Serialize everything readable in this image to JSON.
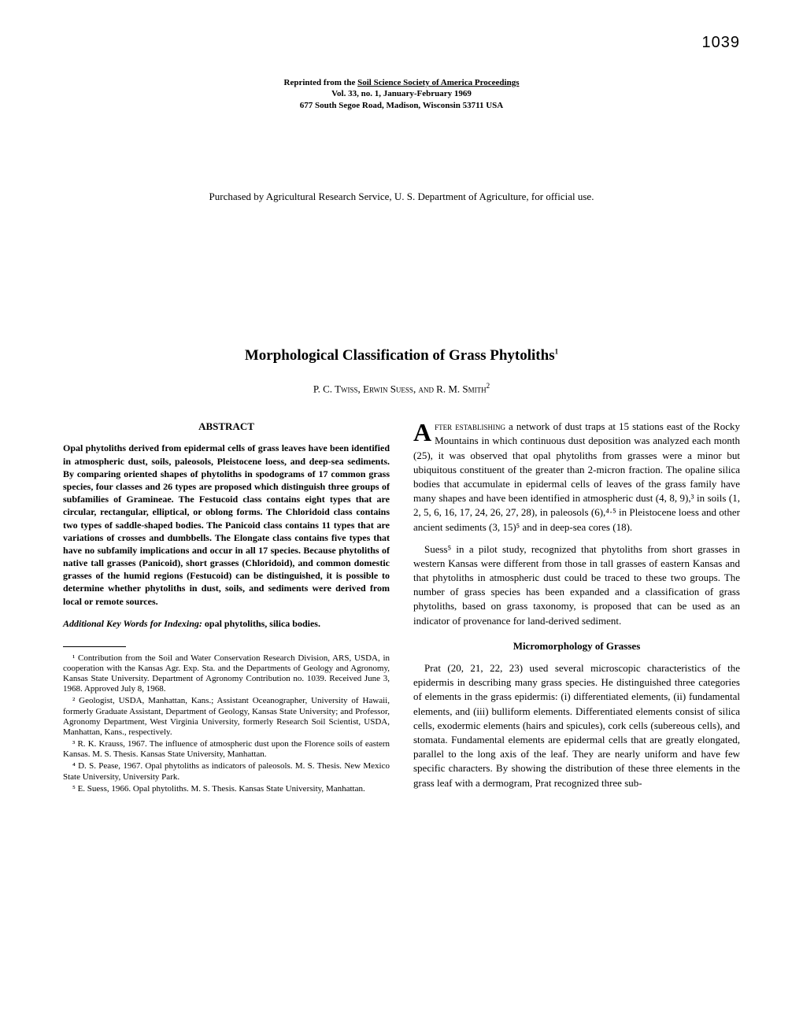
{
  "pageNumber": "1039",
  "reprint": {
    "prefix": "Reprinted from the ",
    "source": "Soil Science Society of America Proceedings",
    "volLine": "Vol. 33, no. 1, January-February 1969",
    "address": "677 South Segoe Road, Madison, Wisconsin 53711 USA"
  },
  "purchasedNote": "Purchased by Agricultural Research Service, U. S. Department of Agriculture, for official use.",
  "title": "Morphological Classification of Grass Phytoliths",
  "titleSup": "1",
  "authors": "P. C. Twiss, Erwin Suess, and R. M. Smith",
  "authorsSup": "2",
  "abstractHeading": "ABSTRACT",
  "abstractText": "Opal phytoliths derived from epidermal cells of grass leaves have been identified in atmospheric dust, soils, paleosols, Pleistocene loess, and deep-sea sediments. By comparing oriented shapes of phytoliths in spodograms of 17 common grass species, four classes and 26 types are proposed which distinguish three groups of subfamilies of Gramineae. The Festucoid class contains eight types that are circular, rectangular, elliptical, or oblong forms. The Chloridoid class contains two types of saddle-shaped bodies. The Panicoid class contains 11 types that are variations of crosses and dumbbells. The Elongate class contains five types that have no subfamily implications and occur in all 17 species. Because phytoliths of native tall grasses (Panicoid), short grasses (Chloridoid), and common domestic grasses of the humid regions (Festucoid) can be distinguished, it is possible to determine whether phytoliths in dust, soils, and sediments were derived from local or remote sources.",
  "keywordsLabel": "Additional Key Words for Indexing:",
  "keywordsText": " opal phytoliths, silica bodies.",
  "footnotes": {
    "f1": "¹ Contribution from the Soil and Water Conservation Research Division, ARS, USDA, in cooperation with the Kansas Agr. Exp. Sta. and the Departments of Geology and Agronomy, Kansas State University. Department of Agronomy Contribution no. 1039. Received June 3, 1968. Approved July 8, 1968.",
    "f2": "² Geologist, USDA, Manhattan, Kans.; Assistant Oceanographer, University of Hawaii, formerly Graduate Assistant, Department of Geology, Kansas State University; and Professor, Agronomy Department, West Virginia University, formerly Research Soil Scientist, USDA, Manhattan, Kans., respectively.",
    "f3": "³ R. K. Krauss, 1967. The influence of atmospheric dust upon the Florence soils of eastern Kansas. M. S. Thesis. Kansas State University, Manhattan.",
    "f4": "⁴ D. S. Pease, 1967. Opal phytoliths as indicators of paleosols. M. S. Thesis. New Mexico State University, University Park.",
    "f5": "⁵ E. Suess, 1966. Opal phytoliths. M. S. Thesis. Kansas State University, Manhattan."
  },
  "body": {
    "dropcap": "A",
    "p1AfterCap": "fter establishing",
    "p1Rest": " a network of dust traps at 15 stations east of the Rocky Mountains in which continuous dust deposition was analyzed each month (25), it was observed that opal phytoliths from grasses were a minor but ubiquitous constituent of the greater than 2-micron fraction. The opaline silica bodies that accumulate in epidermal cells of leaves of the grass family have many shapes and have been identified in atmospheric dust (4, 8, 9),³ in soils (1, 2, 5, 6, 16, 17, 24, 26, 27, 28), in paleosols (6),⁴·⁵ in Pleistocene loess and other ancient sediments (3, 15)⁵ and in deep-sea cores (18).",
    "p2": "Suess⁵ in a pilot study, recognized that phytoliths from short grasses in western Kansas were different from those in tall grasses of eastern Kansas and that phytoliths in atmospheric dust could be traced to these two groups. The number of grass species has been expanded and a classification of grass phytoliths, based on grass taxonomy, is proposed that can be used as an indicator of provenance for land-derived sediment.",
    "sectionHeading": "Micromorphology of Grasses",
    "p3": "Prat (20, 21, 22, 23) used several microscopic characteristics of the epidermis in describing many grass species. He distinguished three categories of elements in the grass epidermis: (i) differentiated elements, (ii) fundamental elements, and (iii) bulliform elements. Differentiated elements consist of silica cells, exodermic elements (hairs and spicules), cork cells (subereous cells), and stomata. Fundamental elements are epidermal cells that are greatly elongated, parallel to the long axis of the leaf. They are nearly uniform and have few specific characters. By showing the distribution of these three elements in the grass leaf with a dermogram, Prat recognized three sub-"
  }
}
